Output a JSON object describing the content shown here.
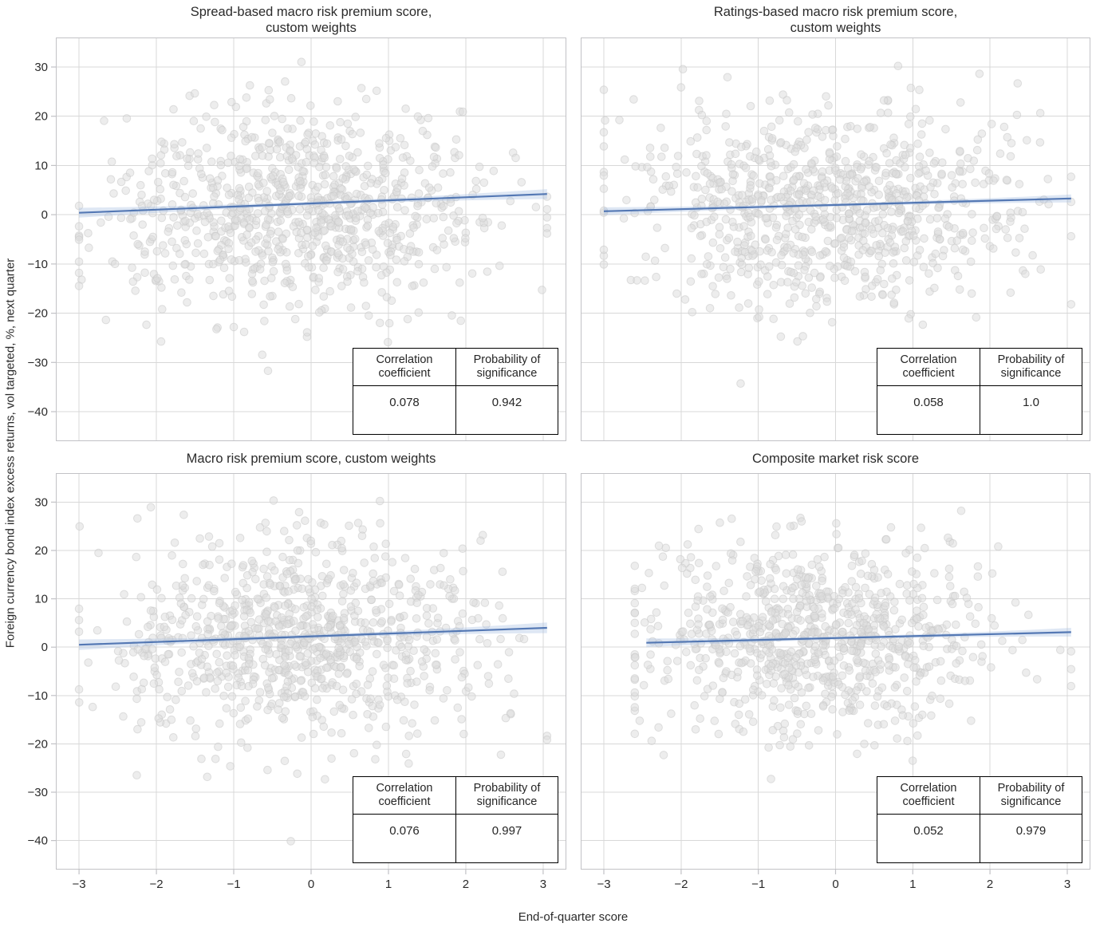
{
  "figure": {
    "xlabel": "End-of-quarter score",
    "ylabel": "Foreign currency bond index excess returns, vol targeted, %, next quarter"
  },
  "table": {
    "header_col1": "Correlation coefficient",
    "header_col2": "Probability of significance"
  },
  "colors": {
    "point_fill": "#dcdcdc",
    "point_edge": "#c9c9c9",
    "regression_line": "#4c72b0",
    "confidence_band": "#a9c0e2",
    "grid": "#d8d8d8",
    "spine": "#c2c2c6",
    "tick_text": "#2b2b2b",
    "title_text": "#262626",
    "table_border": "#000000"
  },
  "chart_data": [
    {
      "type": "scatter",
      "title": "Spread-based macro risk premium score,\ncustom weights",
      "stats": {
        "correlation_coefficient": "0.078",
        "probability_of_significance": "0.942"
      },
      "xlim": [
        -3.3,
        3.3
      ],
      "ylim": [
        -46,
        36
      ],
      "xticks": [
        -3,
        -2,
        -1,
        0,
        1,
        2,
        3
      ],
      "yticks": [
        30,
        20,
        10,
        0,
        -10,
        -20,
        -30,
        -40
      ],
      "show_x_ticklabels": false,
      "show_y_ticklabels": true,
      "grid": true,
      "regression_line": {
        "x": [
          -3.0,
          3.05
        ],
        "y": [
          0.4,
          4.2
        ]
      },
      "confidence_band_halfwidth": {
        "ends": 1.0,
        "middle": 0.35
      },
      "point_cloud": {
        "n": 880,
        "seed": 101,
        "x_mean": -0.15,
        "x_sd": 1.18,
        "x_min": -3.0,
        "x_max": 3.05,
        "y_mean": 1.6,
        "y_sd": 10.3,
        "y_min": -43.0,
        "y_max": 31.5
      }
    },
    {
      "type": "scatter",
      "title": "Ratings-based macro risk premium score,\ncustom weights",
      "stats": {
        "correlation_coefficient": "0.058",
        "probability_of_significance": "1.0"
      },
      "xlim": [
        -3.3,
        3.3
      ],
      "ylim": [
        -46,
        36
      ],
      "xticks": [
        -3,
        -2,
        -1,
        0,
        1,
        2,
        3
      ],
      "yticks": [
        30,
        20,
        10,
        0,
        -10,
        -20,
        -30,
        -40
      ],
      "show_x_ticklabels": false,
      "show_y_ticklabels": false,
      "grid": true,
      "regression_line": {
        "x": [
          -3.0,
          3.05
        ],
        "y": [
          0.7,
          3.3
        ]
      },
      "confidence_band_halfwidth": {
        "ends": 0.8,
        "middle": 0.3
      },
      "point_cloud": {
        "n": 880,
        "seed": 202,
        "x_mean": -0.1,
        "x_sd": 1.2,
        "x_min": -3.0,
        "x_max": 3.05,
        "y_mean": 1.6,
        "y_sd": 10.0,
        "y_min": -41.0,
        "y_max": 31.0
      }
    },
    {
      "type": "scatter",
      "title": "Macro risk premium score, custom weights",
      "stats": {
        "correlation_coefficient": "0.076",
        "probability_of_significance": "0.997"
      },
      "xlim": [
        -3.3,
        3.3
      ],
      "ylim": [
        -46,
        36
      ],
      "xticks": [
        -3,
        -2,
        -1,
        0,
        1,
        2,
        3
      ],
      "yticks": [
        30,
        20,
        10,
        0,
        -10,
        -20,
        -30,
        -40
      ],
      "show_x_ticklabels": true,
      "show_y_ticklabels": true,
      "grid": true,
      "regression_line": {
        "x": [
          -3.0,
          3.05
        ],
        "y": [
          0.5,
          4.0
        ]
      },
      "confidence_band_halfwidth": {
        "ends": 1.1,
        "middle": 0.35
      },
      "point_cloud": {
        "n": 900,
        "seed": 303,
        "x_mean": -0.15,
        "x_sd": 1.15,
        "x_min": -3.0,
        "x_max": 3.05,
        "y_mean": 1.7,
        "y_sd": 10.4,
        "y_min": -41.0,
        "y_max": 31.0
      }
    },
    {
      "type": "scatter",
      "title": "Composite market risk score",
      "stats": {
        "correlation_coefficient": "0.052",
        "probability_of_significance": "0.979"
      },
      "xlim": [
        -3.3,
        3.3
      ],
      "ylim": [
        -46,
        36
      ],
      "xticks": [
        -3,
        -2,
        -1,
        0,
        1,
        2,
        3
      ],
      "yticks": [
        30,
        20,
        10,
        0,
        -10,
        -20,
        -30,
        -40
      ],
      "show_x_ticklabels": true,
      "show_y_ticklabels": false,
      "grid": true,
      "regression_line": {
        "x": [
          -2.45,
          3.05
        ],
        "y": [
          0.9,
          3.1
        ]
      },
      "confidence_band_halfwidth": {
        "ends": 0.9,
        "middle": 0.3
      },
      "point_cloud": {
        "n": 860,
        "seed": 404,
        "x_mean": -0.2,
        "x_sd": 1.15,
        "x_min": -2.6,
        "x_max": 3.05,
        "y_mean": 1.5,
        "y_sd": 10.0,
        "y_min": -38.0,
        "y_max": 31.0
      }
    }
  ]
}
